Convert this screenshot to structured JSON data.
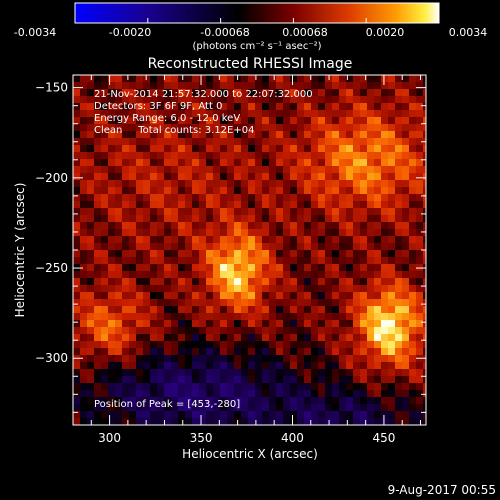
{
  "colorbar": {
    "ticks": [
      "-0.0034",
      "-0.0020",
      "-0.00068",
      "0.00068",
      "0.0020",
      "0.0034"
    ],
    "unit_label": "(photons cm⁻² s⁻¹ asec⁻²)",
    "min": -0.0034,
    "max": 0.0034
  },
  "chart_data": {
    "type": "heatmap",
    "title": "Reconstructed RHESSI Image",
    "xlabel": "Heliocentric X (arcsec)",
    "ylabel": "Heliocentric Y (arcsec)",
    "xlim": [
      280,
      473
    ],
    "ylim": [
      -337,
      -143
    ],
    "xticks": [
      300,
      350,
      400,
      450
    ],
    "yticks": [
      -150,
      -200,
      -250,
      -300
    ],
    "annotations": [
      "21-Nov-2014 21:57:32.000 to 22:07:32.000",
      "Detectors: 3F 6F 9F, Att 0",
      "Energy Range: 6.0 - 12.0 keV",
      "Clean     Total counts: 3.12E+04"
    ],
    "peak_label": "Position of Peak = [453,-280]",
    "peak": [
      453,
      -280
    ],
    "colormap": [
      "#0000ff",
      "#1a0090",
      "#000000",
      "#6a0000",
      "#d03000",
      "#ff8000",
      "#ffe000",
      "#ffffff"
    ]
  },
  "footer": {
    "date": "9-Aug-2017 00:55"
  }
}
